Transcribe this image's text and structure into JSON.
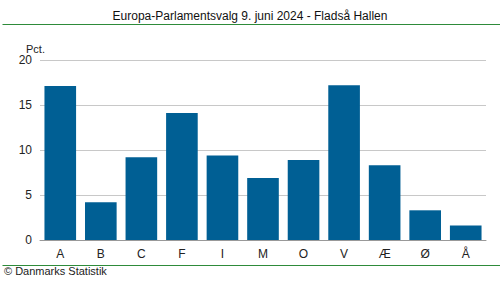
{
  "chart_data": {
    "type": "bar",
    "title": "Europa-Parlamentsvalg 9. juni 2024 - Fladså Hallen",
    "y_label": "Pct.",
    "annotations": [
      "© Danmarks Statistik"
    ],
    "categories": [
      "A",
      "B",
      "C",
      "F",
      "I",
      "M",
      "O",
      "V",
      "Æ",
      "Ø",
      "Å"
    ],
    "values": [
      17.1,
      4.2,
      9.2,
      14.1,
      9.4,
      6.9,
      8.9,
      17.2,
      8.3,
      3.3,
      1.6
    ],
    "color": "#005f94",
    "ylim": [
      0,
      20
    ],
    "yticks": [
      0,
      5,
      10,
      15,
      20
    ],
    "grid": true
  }
}
